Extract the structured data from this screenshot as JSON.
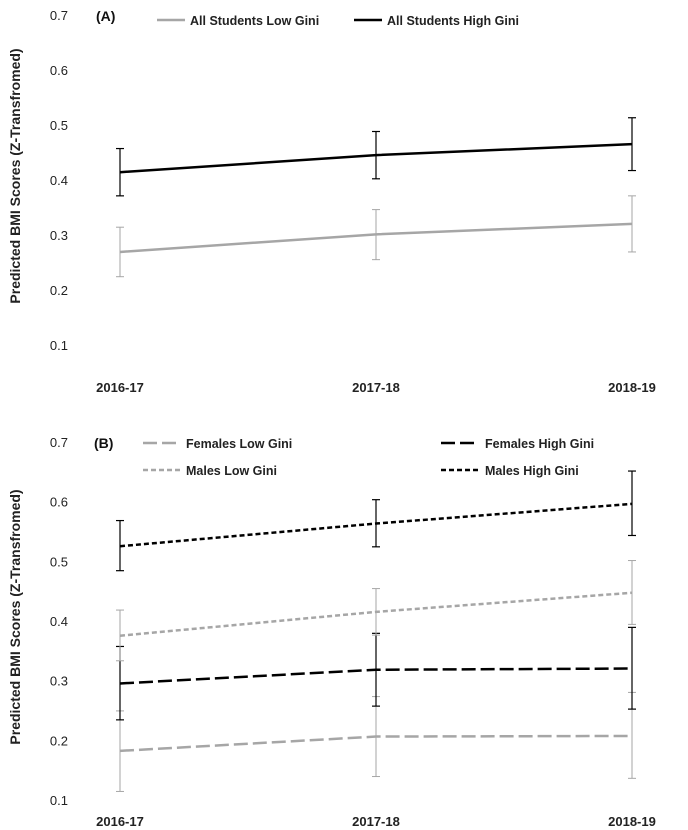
{
  "chart_data": [
    {
      "type": "line",
      "panel_label": "(A)",
      "ylabel": "Predicted BMI Scores (Z-Transfromed)",
      "categories": [
        "2016-17",
        "2017-18",
        "2018-19"
      ],
      "ylim": [
        0.1,
        0.7
      ],
      "yticks": [
        "0.1",
        "0.2",
        "0.3",
        "0.4",
        "0.5",
        "0.6",
        "0.7"
      ],
      "grid": false,
      "legend_position": "top",
      "series": [
        {
          "name": "All Students Low Gini",
          "color": "#a6a6a6",
          "dash": "solid",
          "values": [
            0.271,
            0.303,
            0.322
          ],
          "lower": [
            0.226,
            0.257,
            0.271
          ],
          "upper": [
            0.316,
            0.348,
            0.373
          ]
        },
        {
          "name": "All Students High Gini",
          "color": "#000000",
          "dash": "solid",
          "values": [
            0.416,
            0.447,
            0.467
          ],
          "lower": [
            0.373,
            0.404,
            0.419
          ],
          "upper": [
            0.459,
            0.49,
            0.515
          ]
        }
      ]
    },
    {
      "type": "line",
      "panel_label": "(B)",
      "ylabel": "Predicted BMI Scores (Z-Transfromed)",
      "categories": [
        "2016-17",
        "2017-18",
        "2018-19"
      ],
      "ylim": [
        0.1,
        0.7
      ],
      "yticks": [
        "0.1",
        "0.2",
        "0.3",
        "0.4",
        "0.5",
        "0.6",
        "0.7"
      ],
      "grid": false,
      "legend_position": "top",
      "series": [
        {
          "name": "Females Low Gini",
          "color": "#a6a6a6",
          "dash": "long-dash",
          "values": [
            0.184,
            0.208,
            0.209
          ],
          "lower": [
            0.116,
            0.141,
            0.138
          ],
          "upper": [
            0.251,
            0.275,
            0.282
          ]
        },
        {
          "name": "Females High Gini",
          "color": "#000000",
          "dash": "long-dash",
          "values": [
            0.297,
            0.32,
            0.322
          ],
          "lower": [
            0.236,
            0.259,
            0.254
          ],
          "upper": [
            0.359,
            0.381,
            0.391
          ]
        },
        {
          "name": "Males Low Gini",
          "color": "#a6a6a6",
          "dash": "short-dash",
          "values": [
            0.377,
            0.417,
            0.449
          ],
          "lower": [
            0.335,
            0.378,
            0.396
          ],
          "upper": [
            0.42,
            0.456,
            0.503
          ]
        },
        {
          "name": "Males High Gini",
          "color": "#000000",
          "dash": "short-dash",
          "values": [
            0.527,
            0.565,
            0.598
          ],
          "lower": [
            0.486,
            0.526,
            0.545
          ],
          "upper": [
            0.57,
            0.605,
            0.653
          ]
        }
      ]
    }
  ]
}
